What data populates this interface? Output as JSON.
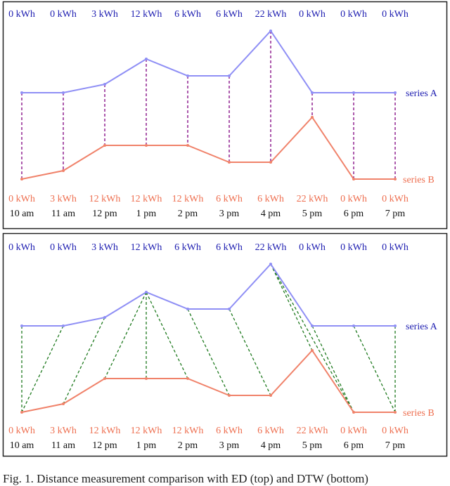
{
  "chart_data": [
    {
      "type": "line",
      "method": "ED",
      "categories": [
        "10 am",
        "11 am",
        "12 pm",
        "1 pm",
        "2 pm",
        "3 pm",
        "4 pm",
        "5 pm",
        "6 pm",
        "7 pm"
      ],
      "series": [
        {
          "name": "series A",
          "values": [
            0,
            0,
            3,
            12,
            6,
            6,
            22,
            0,
            0,
            0
          ],
          "color": "#8f8ff5",
          "label_color": "#1c1cb0"
        },
        {
          "name": "series B",
          "values": [
            0,
            3,
            12,
            12,
            12,
            6,
            6,
            22,
            0,
            0
          ],
          "color": "#f0826a",
          "label_color": "#ee6f50"
        }
      ],
      "alignment": [
        [
          0,
          0
        ],
        [
          1,
          1
        ],
        [
          2,
          2
        ],
        [
          3,
          3
        ],
        [
          4,
          4
        ],
        [
          5,
          5
        ],
        [
          6,
          6
        ],
        [
          7,
          7
        ],
        [
          8,
          8
        ],
        [
          9,
          9
        ]
      ],
      "alignment_color": "#800080",
      "unit": "kWh"
    },
    {
      "type": "line",
      "method": "DTW",
      "categories": [
        "10 am",
        "11 am",
        "12 pm",
        "1 pm",
        "2 pm",
        "3 pm",
        "4 pm",
        "5 pm",
        "6 pm",
        "7 pm"
      ],
      "series": [
        {
          "name": "series A",
          "values": [
            0,
            0,
            3,
            12,
            6,
            6,
            22,
            0,
            0,
            0
          ],
          "color": "#8f8ff5",
          "label_color": "#1c1cb0"
        },
        {
          "name": "series B",
          "values": [
            0,
            3,
            12,
            12,
            12,
            6,
            6,
            22,
            0,
            0
          ],
          "color": "#f0826a",
          "label_color": "#ee6f50"
        }
      ],
      "alignment": [
        [
          0,
          0
        ],
        [
          1,
          0
        ],
        [
          2,
          1
        ],
        [
          3,
          2
        ],
        [
          3,
          3
        ],
        [
          3,
          4
        ],
        [
          4,
          5
        ],
        [
          5,
          6
        ],
        [
          6,
          7
        ],
        [
          6,
          8
        ],
        [
          7,
          8
        ],
        [
          8,
          9
        ],
        [
          9,
          9
        ]
      ],
      "alignment_color": "#1f7a1f",
      "unit": "kWh"
    }
  ],
  "caption": "Fig. 1.  Distance measurement comparison with ED (top) and DTW (bottom)"
}
